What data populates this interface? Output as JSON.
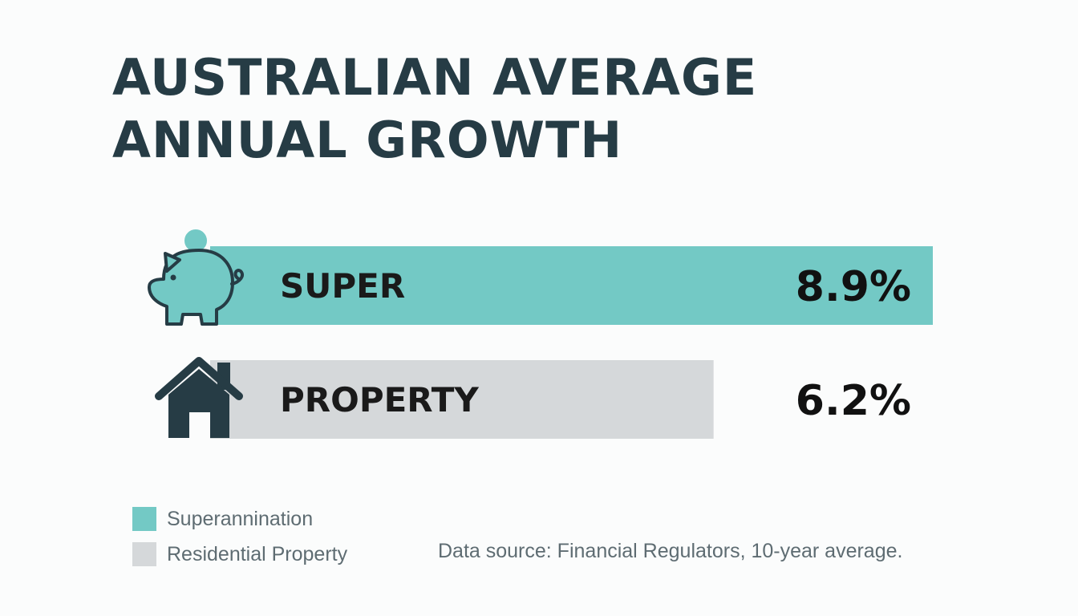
{
  "chart_data": {
    "type": "bar",
    "orientation": "horizontal",
    "title": "AUSTRALIAN AVERAGE\nANNUAL GROWTH",
    "categories": [
      "SUPER",
      "PROPERTY"
    ],
    "values": [
      8.9,
      6.2
    ],
    "value_labels": [
      "8.9%",
      "6.2%"
    ],
    "unit": "%",
    "icons": [
      "piggy-bank-icon",
      "house-icon"
    ],
    "colors": [
      "#73c9c5",
      "#d5d8da"
    ],
    "legend": [
      {
        "label": "Superannination",
        "color": "#73c9c5"
      },
      {
        "label": "Residential Property",
        "color": "#d5d8da"
      }
    ],
    "legend_position": "bottom-left",
    "source": "Data source: Financial Regulators, 10-year average.",
    "grid": false,
    "axes_visible": false
  },
  "colors": {
    "background": "#fbfcfc",
    "title": "#263c45",
    "icon": "#263c45",
    "value_text": "#111111",
    "muted_text": "#5e6c72"
  }
}
